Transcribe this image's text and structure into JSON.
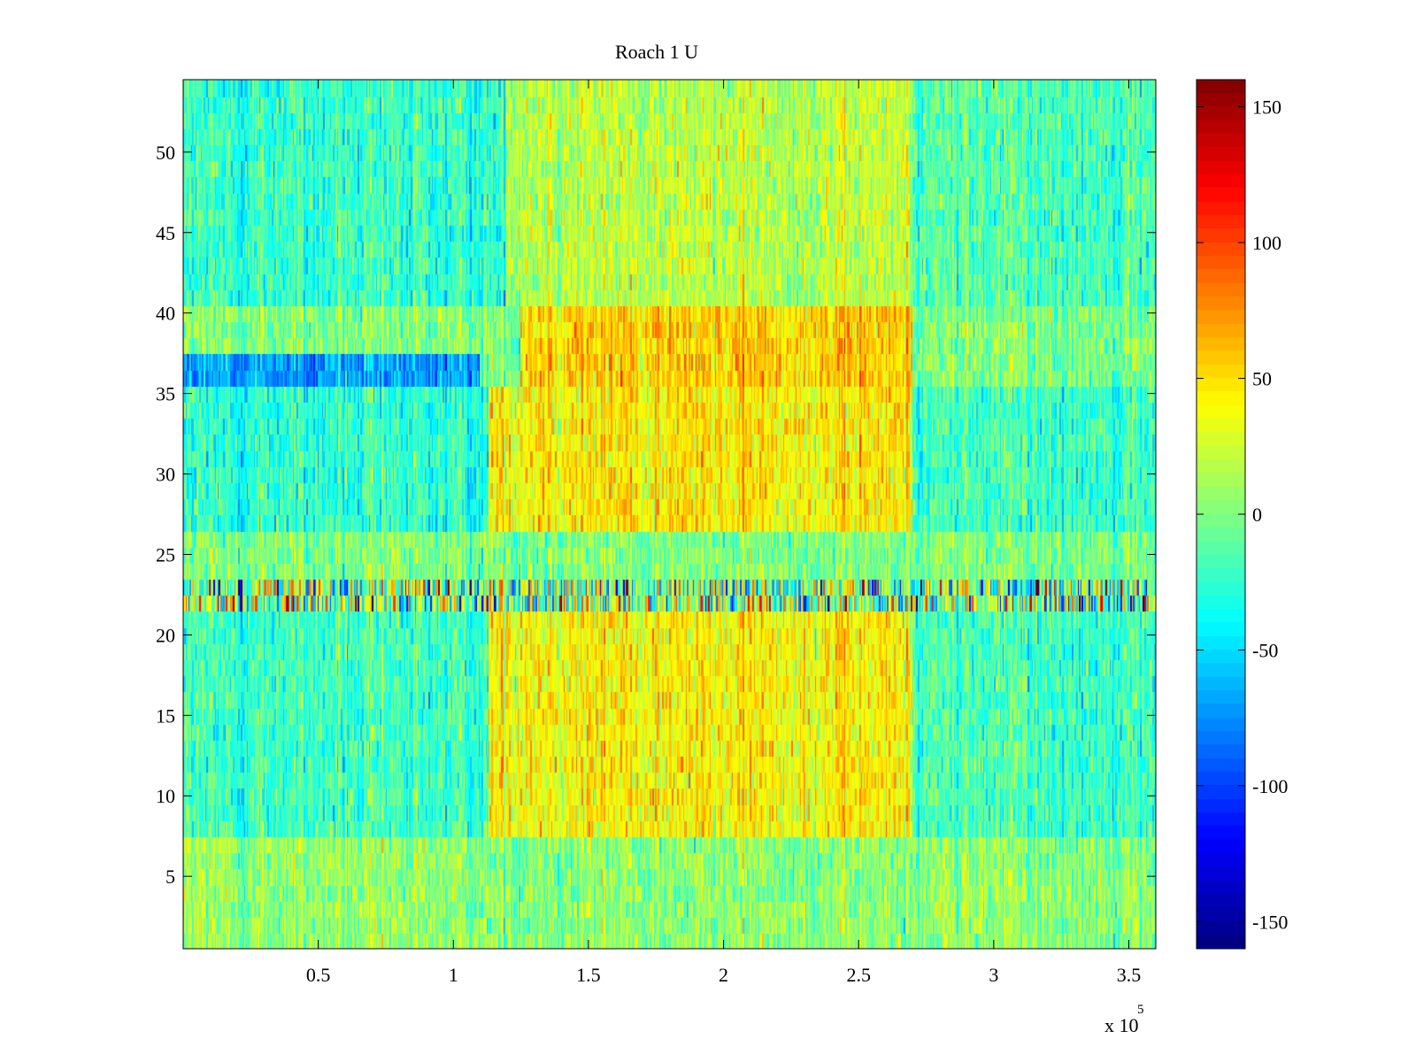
{
  "chart_data": {
    "type": "heatmap",
    "title": "Roach 1 U",
    "xlabel": "",
    "ylabel": "",
    "x_exponent_label": {
      "base": "x 10",
      "exponent": "5"
    },
    "xlim": [
      0,
      360000
    ],
    "ylim": [
      0.5,
      54.5
    ],
    "x_ticks": [
      {
        "value": 50000,
        "label": "0.5"
      },
      {
        "value": 100000,
        "label": "1"
      },
      {
        "value": 150000,
        "label": "1.5"
      },
      {
        "value": 200000,
        "label": "2"
      },
      {
        "value": 250000,
        "label": "2.5"
      },
      {
        "value": 300000,
        "label": "3"
      },
      {
        "value": 350000,
        "label": "3.5"
      }
    ],
    "y_ticks": [
      {
        "value": 5,
        "label": "5"
      },
      {
        "value": 10,
        "label": "10"
      },
      {
        "value": 15,
        "label": "15"
      },
      {
        "value": 20,
        "label": "20"
      },
      {
        "value": 25,
        "label": "25"
      },
      {
        "value": 30,
        "label": "30"
      },
      {
        "value": 35,
        "label": "35"
      },
      {
        "value": 40,
        "label": "40"
      },
      {
        "value": 45,
        "label": "45"
      },
      {
        "value": 50,
        "label": "50"
      }
    ],
    "colorbar": {
      "colormap": "jet",
      "clim": [
        -160,
        160
      ],
      "ticks": [
        {
          "value": -150,
          "label": "-150"
        },
        {
          "value": -100,
          "label": "-100"
        },
        {
          "value": -50,
          "label": "-50"
        },
        {
          "value": 0,
          "label": "0"
        },
        {
          "value": 50,
          "label": "50"
        },
        {
          "value": 100,
          "label": "100"
        },
        {
          "value": 150,
          "label": "150"
        }
      ]
    },
    "rows": 54,
    "regions": [
      {
        "rows": [
          1,
          7
        ],
        "x": [
          0,
          360000
        ],
        "mean": 5
      },
      {
        "rows": [
          8,
          21
        ],
        "x": [
          0,
          113000
        ],
        "mean": -22
      },
      {
        "rows": [
          8,
          21
        ],
        "x": [
          113000,
          270000
        ],
        "mean": 42
      },
      {
        "rows": [
          8,
          21
        ],
        "x": [
          270000,
          360000
        ],
        "mean": -18
      },
      {
        "rows": [
          22,
          23
        ],
        "x": [
          0,
          360000
        ],
        "mean": 0,
        "note": "high-variance band"
      },
      {
        "rows": [
          24,
          26
        ],
        "x": [
          0,
          360000
        ],
        "mean": 0
      },
      {
        "rows": [
          27,
          35
        ],
        "x": [
          0,
          113000
        ],
        "mean": -28
      },
      {
        "rows": [
          27,
          35
        ],
        "x": [
          113000,
          270000
        ],
        "mean": 45
      },
      {
        "rows": [
          27,
          35
        ],
        "x": [
          270000,
          360000
        ],
        "mean": -20
      },
      {
        "rows": [
          36,
          37
        ],
        "x": [
          0,
          110000
        ],
        "mean": -70
      },
      {
        "rows": [
          36,
          40
        ],
        "x": [
          125000,
          270000
        ],
        "mean": 55
      },
      {
        "rows": [
          41,
          54
        ],
        "x": [
          0,
          120000
        ],
        "mean": -25
      },
      {
        "rows": [
          41,
          54
        ],
        "x": [
          120000,
          270000
        ],
        "mean": 20
      },
      {
        "rows": [
          41,
          54
        ],
        "x": [
          270000,
          360000
        ],
        "mean": -15
      }
    ]
  }
}
